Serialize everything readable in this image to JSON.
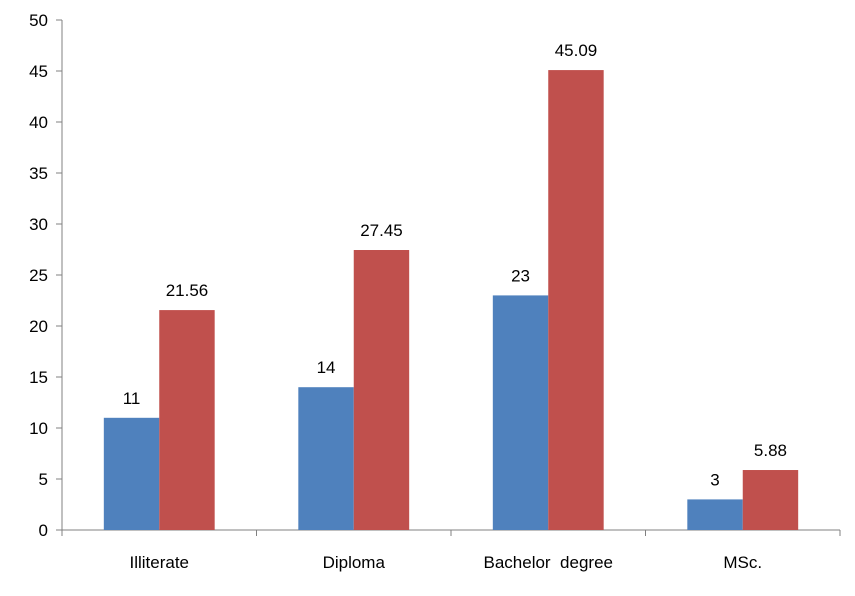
{
  "chart_data": {
    "type": "bar",
    "categories": [
      "Illiterate",
      "Diploma",
      "Bachelor  degree",
      "MSc."
    ],
    "series": [
      {
        "values": [
          11,
          14,
          23,
          3
        ],
        "color": "#4f81bd",
        "labels": [
          "11",
          "14",
          "23",
          "3"
        ]
      },
      {
        "values": [
          21.56,
          27.45,
          45.09,
          5.88
        ],
        "color": "#c0504d",
        "labels": [
          "21.56",
          "27.45",
          "45.09",
          "5.88"
        ]
      }
    ],
    "title": "",
    "xlabel": "",
    "ylabel": "",
    "ylim": [
      0,
      50
    ],
    "yticks": [
      0,
      5,
      10,
      15,
      20,
      25,
      30,
      35,
      40,
      45,
      50
    ],
    "grid": false,
    "legend": "none"
  }
}
